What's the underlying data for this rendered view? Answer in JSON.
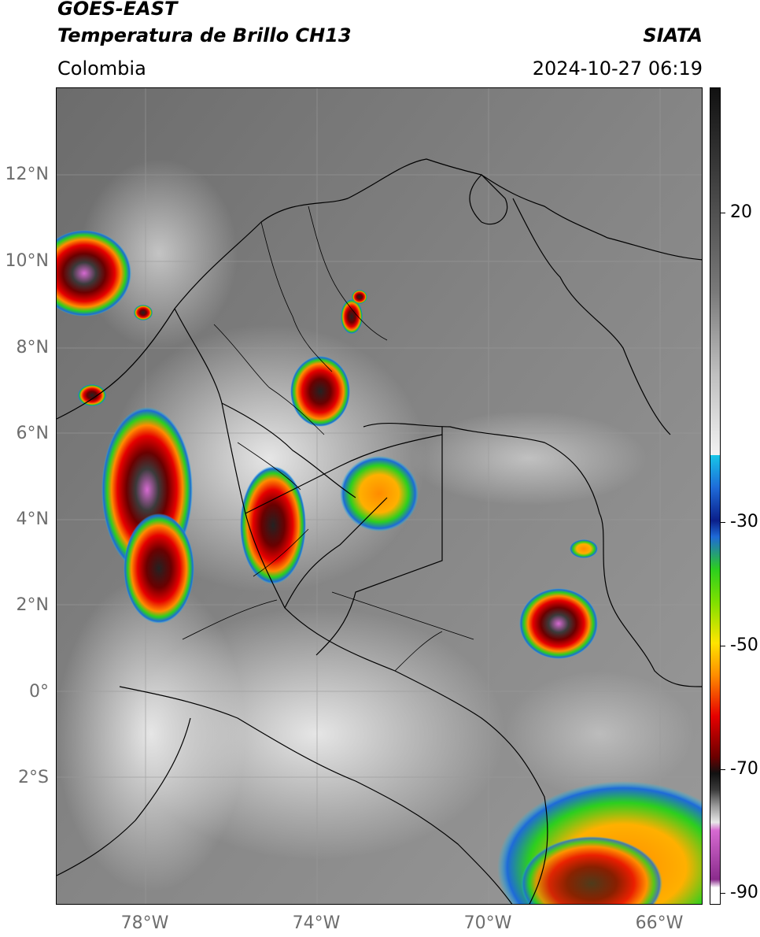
{
  "header": {
    "satellite": "GOES-EAST",
    "product": "Temperatura de Brillo CH13",
    "region": "Colombia",
    "agency": "SIATA",
    "datetime": "2024-10-27 06:19"
  },
  "axes": {
    "latitude_labels": [
      "12°N",
      "10°N",
      "8°N",
      "6°N",
      "4°N",
      "2°N",
      "0°",
      "2°S"
    ],
    "longitude_labels": [
      "78°W",
      "74°W",
      "70°W",
      "66°W"
    ]
  },
  "colorbar": {
    "tick_labels": [
      "20",
      "-30",
      "-50",
      "-70",
      "-90"
    ],
    "colors": {
      "magenta": "#d66ad1",
      "purple": "#8a2c8c",
      "black": "#111111",
      "dark_red": "#6b0000",
      "red": "#e60000",
      "orange": "#ff8c00",
      "yellow": "#ffe400",
      "green": "#2ccf1e",
      "dark_blue": "#0b1f8a",
      "blue": "#1e6ad8",
      "cyan": "#17c6e8",
      "light_gray": "#e8e8e8",
      "dark_gray": "#3a3a3a"
    }
  }
}
